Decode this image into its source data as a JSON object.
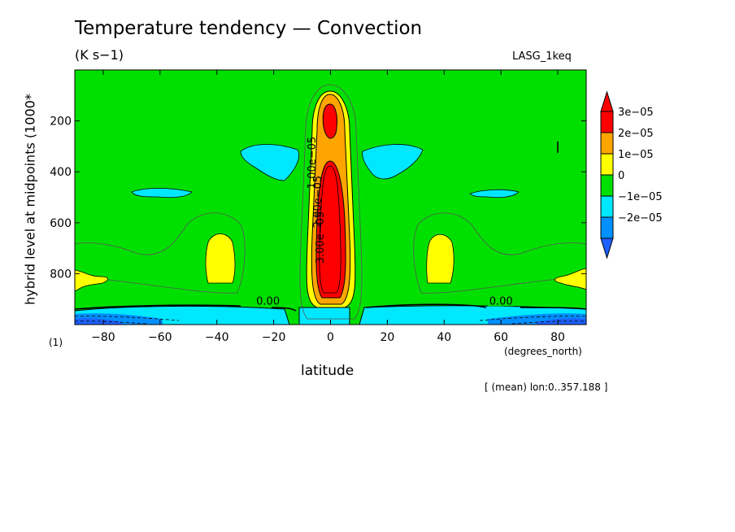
{
  "chart_data": {
    "type": "contour",
    "title": "Temperature tendency — Convection",
    "units": "(K s−1)",
    "run_label": "LASG_1keq",
    "xlabel": "latitude",
    "x_units": "(degrees_north)",
    "ylabel": "hybrid level at midpoints (1000*",
    "ylabel_scale": "(1)",
    "note": "[ (mean) lon:0..357.188 ]",
    "xlim": [
      -90,
      90
    ],
    "ylim": [
      1000,
      0
    ],
    "xticks": [
      -80,
      -60,
      -40,
      -20,
      0,
      20,
      40,
      60,
      80
    ],
    "xtick_labels": [
      "−80",
      "−60",
      "−40",
      "−20",
      "0",
      "20",
      "40",
      "60",
      "80"
    ],
    "yticks": [
      200,
      400,
      600,
      800
    ],
    "ytick_labels": [
      "200",
      "400",
      "600",
      "800"
    ],
    "legend": {
      "position": "right",
      "levels": [
        {
          "label": "3e−05",
          "color": "#ff0000"
        },
        {
          "label": "2e−05",
          "color": "#ffa500"
        },
        {
          "label": "1e−05",
          "color": "#ffff00"
        },
        {
          "label": "0",
          "color": "#00e000"
        },
        {
          "label": "−1e−05",
          "color": "#00e8ff"
        },
        {
          "label": "−2e−05",
          "color": "#0090ff"
        }
      ],
      "bottom_color": "#1e60ff"
    },
    "contour_labels": [
      {
        "text": "0.00",
        "lat": -22,
        "lev": 915
      },
      {
        "text": "0.00",
        "lat": 60,
        "lev": 915
      }
    ],
    "region_labels": [
      "1.00e−05",
      "2.00e−05",
      "3.00e−05"
    ],
    "background_color": "#00e000"
  }
}
